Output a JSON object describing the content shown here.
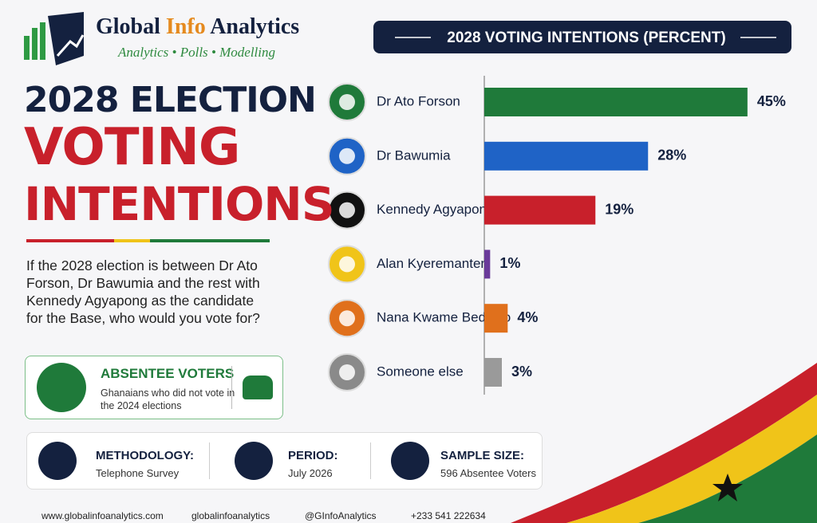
{
  "brand": {
    "name": [
      "Global",
      "Info",
      "Analytics"
    ],
    "tagline": "Analytics • Polls • Modelling"
  },
  "headline": {
    "line1": "2028 ELECTION",
    "line2": "VOTING",
    "line3": "INTENTIONS"
  },
  "question": "If the 2028 election is between Dr Ato Forson, Dr Bawumia and the rest with Kennedy Agyapong as the candidate for the Base, who would you vote for?",
  "absentee": {
    "title": "ABSENTEE VOTERS",
    "text": "Ghanaians who did not vote in the 2024 elections"
  },
  "info": [
    {
      "label": "METHODOLOGY:",
      "value": "Telephone Survey"
    },
    {
      "label": "PERIOD:",
      "value": "July 2026"
    },
    {
      "label": "SAMPLE SIZE:",
      "value": "596 Absentee Voters"
    }
  ],
  "footer": [
    "www.globalinfoanalytics.com",
    "globalinfoanalytics",
    "@GInfoAnalytics",
    "+233 541 222634"
  ],
  "chart_data": {
    "type": "bar",
    "orientation": "horizontal",
    "title": "2028 VOTING INTENTIONS (PERCENT)",
    "categories": [
      "Dr Ato Forson",
      "Dr Bawumia",
      "Kennedy Agyapong",
      "Alan Kyeremanten",
      "Nana Kwame Bediako",
      "Someone else"
    ],
    "values": [
      45,
      28,
      19,
      1,
      4,
      3
    ],
    "value_labels": [
      "45%",
      "28%",
      "19%",
      "1%",
      "4%",
      "3%"
    ],
    "colors": [
      "#1f7a3a",
      "#1f63c6",
      "#c8202b",
      "#6a3a9a",
      "#e0701c",
      "#9a9a9a"
    ]
  }
}
